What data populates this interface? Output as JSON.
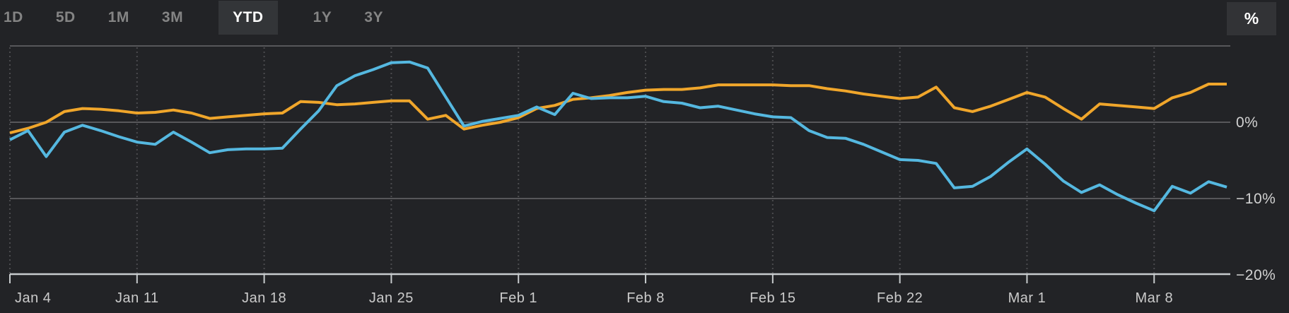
{
  "toolbar": {
    "ranges": [
      {
        "label": "1D",
        "active": false
      },
      {
        "label": "5D",
        "active": false
      },
      {
        "label": "1M",
        "active": false
      },
      {
        "label": "3M",
        "active": false
      },
      {
        "label": "YTD",
        "active": true
      },
      {
        "label": "1Y",
        "active": false
      },
      {
        "label": "3Y",
        "active": false
      }
    ],
    "percent_label": "%"
  },
  "colors": {
    "background": "#222326",
    "gridline": "#57575a",
    "dotted_gridline": "#4b4b4e",
    "axis_line": "#c7cbcd",
    "tick_label": "#cbcbcb",
    "series_orange": "#f0a62b",
    "series_blue": "#55b8e0"
  },
  "chart_data": {
    "type": "line",
    "title": "",
    "xlabel": "",
    "ylabel": "",
    "y_unit": "%",
    "ylim": [
      -20,
      11
    ],
    "grid": true,
    "legend_position": "none",
    "top_gridline_pct": 10,
    "y_ticks": [
      {
        "pct": 0,
        "label": "0%"
      },
      {
        "pct": -10,
        "label": "−10%"
      },
      {
        "pct": -20,
        "label": "−20%"
      }
    ],
    "x": [
      "Jan 4",
      "Jan 5",
      "Jan 6",
      "Jan 7",
      "Jan 8",
      "Jan 9",
      "Jan 10",
      "Jan 11",
      "Jan 12",
      "Jan 13",
      "Jan 14",
      "Jan 15",
      "Jan 16",
      "Jan 17",
      "Jan 18",
      "Jan 19",
      "Jan 20",
      "Jan 21",
      "Jan 22",
      "Jan 23",
      "Jan 24",
      "Jan 25",
      "Jan 26",
      "Jan 27",
      "Jan 28",
      "Jan 29",
      "Jan 30",
      "Jan 31",
      "Feb 1",
      "Feb 2",
      "Feb 3",
      "Feb 4",
      "Feb 5",
      "Feb 6",
      "Feb 7",
      "Feb 8",
      "Feb 9",
      "Feb 10",
      "Feb 11",
      "Feb 12",
      "Feb 13",
      "Feb 14",
      "Feb 15",
      "Feb 16",
      "Feb 17",
      "Feb 18",
      "Feb 19",
      "Feb 20",
      "Feb 21",
      "Feb 22",
      "Feb 23",
      "Feb 24",
      "Feb 25",
      "Feb 26",
      "Feb 27",
      "Feb 28",
      "Mar 1",
      "Mar 2",
      "Mar 3",
      "Mar 4",
      "Mar 5",
      "Mar 6",
      "Mar 7",
      "Mar 8",
      "Mar 9",
      "Mar 10",
      "Mar 11",
      "Mar 12"
    ],
    "x_tick_idx": [
      0,
      7,
      14,
      21,
      28,
      35,
      42,
      49,
      56,
      63
    ],
    "x_tick_labels": [
      "Jan 4",
      "Jan 11",
      "Jan 18",
      "Jan 25",
      "Feb 1",
      "Feb 8",
      "Feb 15",
      "Feb 22",
      "Mar 1",
      "Mar 8"
    ],
    "series": [
      {
        "name": "series-orange",
        "color": "#f0a62b",
        "values": [
          -1.4,
          -0.8,
          0.0,
          1.4,
          1.8,
          1.7,
          1.5,
          1.2,
          1.3,
          1.6,
          1.2,
          0.5,
          0.7,
          0.9,
          1.1,
          1.2,
          2.7,
          2.6,
          2.3,
          2.4,
          2.6,
          2.8,
          2.8,
          0.4,
          0.9,
          -0.9,
          -0.4,
          0.0,
          0.6,
          1.8,
          2.2,
          3.0,
          3.2,
          3.5,
          3.9,
          4.2,
          4.3,
          4.3,
          4.5,
          4.9,
          4.9,
          4.9,
          4.9,
          4.8,
          4.8,
          4.4,
          4.1,
          3.7,
          3.4,
          3.1,
          3.3,
          4.6,
          1.9,
          1.4,
          2.1,
          3.0,
          3.9,
          3.3,
          1.8,
          0.4,
          2.4,
          2.2,
          2.0,
          1.8,
          3.2,
          3.9,
          5.0,
          5.0
        ]
      },
      {
        "name": "series-blue",
        "color": "#55b8e0",
        "values": [
          -2.3,
          -1.1,
          -4.5,
          -1.3,
          -0.4,
          -1.1,
          -1.9,
          -2.6,
          -2.9,
          -1.3,
          -2.6,
          -4.0,
          -3.6,
          -3.5,
          -3.5,
          -3.4,
          -0.9,
          1.5,
          4.8,
          6.1,
          6.9,
          7.8,
          7.9,
          7.1,
          3.3,
          -0.5,
          0.1,
          0.5,
          0.9,
          2.0,
          1.0,
          3.8,
          3.1,
          3.2,
          3.2,
          3.4,
          2.7,
          2.5,
          1.9,
          2.1,
          1.6,
          1.1,
          0.7,
          0.6,
          -1.1,
          -2.0,
          -2.1,
          -2.9,
          -3.9,
          -4.9,
          -5.0,
          -5.4,
          -8.6,
          -8.4,
          -7.1,
          -5.2,
          -3.5,
          -5.5,
          -7.7,
          -9.2,
          -8.2,
          -9.5,
          -10.6,
          -11.6,
          -8.4,
          -9.3,
          -7.8,
          -8.5
        ]
      }
    ]
  }
}
